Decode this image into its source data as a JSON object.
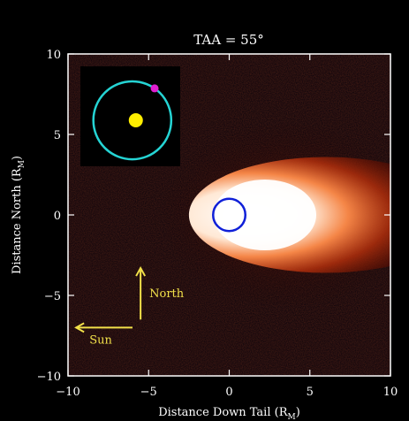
{
  "chart_data": {
    "type": "heatmap",
    "title": "TAA = 55°",
    "xlabel": "Distance Down Tail (R",
    "xlabel_sub": "M",
    "xlabel_close": ")",
    "ylabel": "Distance North (R",
    "ylabel_sub": "M",
    "ylabel_close": ")",
    "xlim": [
      -10,
      10
    ],
    "ylim": [
      -10,
      10
    ],
    "xticks": [
      {
        "value": -10,
        "label": "−10"
      },
      {
        "value": -5,
        "label": "−5"
      },
      {
        "value": 0,
        "label": "0"
      },
      {
        "value": 5,
        "label": "5"
      },
      {
        "value": 10,
        "label": "10"
      }
    ],
    "yticks": [
      {
        "value": 10,
        "label": "10"
      },
      {
        "value": 5,
        "label": "5"
      },
      {
        "value": 0,
        "label": "0"
      },
      {
        "value": -5,
        "label": "−5"
      },
      {
        "value": -10,
        "label": "−10"
      }
    ],
    "planet": {
      "center": [
        0,
        0
      ],
      "radius": 1
    },
    "emission_tail": {
      "direction": "+x",
      "extends_to": 10,
      "colormap": [
        "#000000",
        "#5a0c00",
        "#b02a0a",
        "#ff7a3c",
        "#ffd9b8",
        "#ffffff"
      ]
    },
    "annotations": [
      {
        "text": "North",
        "arrow_from": [
          -5.5,
          -6.5
        ],
        "arrow_to": [
          -5.5,
          -3.3
        ],
        "color": "#f2e14a"
      },
      {
        "text": "Sun",
        "arrow_from": [
          -6,
          -7
        ],
        "arrow_to": [
          -9.5,
          -7
        ],
        "color": "#f2e14a"
      }
    ],
    "inset": {
      "orbit_color": "#25d4d4",
      "sun_color": "#ffee00",
      "planet_marker_color": "#e01fd0",
      "true_anomaly_deg": 55
    },
    "grid": false
  }
}
